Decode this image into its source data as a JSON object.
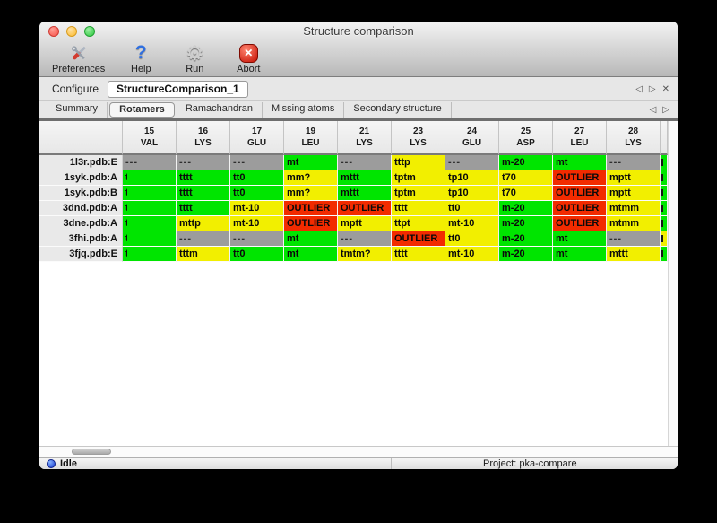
{
  "window": {
    "title": "Structure comparison"
  },
  "toolbar": {
    "items": [
      {
        "label": "Preferences",
        "icon": "preferences-tools-icon"
      },
      {
        "label": "Help",
        "icon": "help-question-icon",
        "glyph": "?"
      },
      {
        "label": "Run",
        "icon": "run-gear-icon",
        "glyph": "⚙"
      },
      {
        "label": "Abort",
        "icon": "abort-stop-icon",
        "glyph": "✕"
      }
    ]
  },
  "configure": {
    "label": "Configure",
    "value": "StructureComparison_1"
  },
  "view_nav": {
    "prev": "◁",
    "next": "▷",
    "close": "✕"
  },
  "tabs": {
    "active": "Rotamers",
    "items": [
      "Summary",
      "Rotamers",
      "Ramachandran",
      "Missing atoms",
      "Secondary structure"
    ],
    "prev": "◁",
    "next": "▷"
  },
  "legend_colors": {
    "good": "#00e500",
    "allowed": "#f2ef00",
    "outlier": "#f22b00",
    "missing": "#9c9c9c"
  },
  "table": {
    "columns": [
      {
        "num": "15",
        "res": "VAL"
      },
      {
        "num": "16",
        "res": "LYS"
      },
      {
        "num": "17",
        "res": "GLU"
      },
      {
        "num": "19",
        "res": "LEU"
      },
      {
        "num": "21",
        "res": "LYS"
      },
      {
        "num": "23",
        "res": "LYS"
      },
      {
        "num": "24",
        "res": "GLU"
      },
      {
        "num": "25",
        "res": "ASP"
      },
      {
        "num": "27",
        "res": "LEU"
      },
      {
        "num": "28",
        "res": "LYS"
      }
    ],
    "rows": [
      {
        "label": "1l3r.pdb:E",
        "partial": "green",
        "cells": [
          {
            "t": "---",
            "c": "gray"
          },
          {
            "t": "---",
            "c": "gray"
          },
          {
            "t": "---",
            "c": "gray"
          },
          {
            "t": "mt",
            "c": "green"
          },
          {
            "t": "---",
            "c": "gray"
          },
          {
            "t": "tttp",
            "c": "yellow"
          },
          {
            "t": "---",
            "c": "gray"
          },
          {
            "t": "m-20",
            "c": "green"
          },
          {
            "t": "mt",
            "c": "green"
          },
          {
            "t": "---",
            "c": "gray"
          }
        ]
      },
      {
        "label": "1syk.pdb:A",
        "partial": "green",
        "cells": [
          {
            "t": "t",
            "c": "green",
            "clip": true
          },
          {
            "t": "tttt",
            "c": "green"
          },
          {
            "t": "tt0",
            "c": "green"
          },
          {
            "t": "mm?",
            "c": "yellow"
          },
          {
            "t": "mttt",
            "c": "green"
          },
          {
            "t": "tptm",
            "c": "yellow"
          },
          {
            "t": "tp10",
            "c": "yellow"
          },
          {
            "t": "t70",
            "c": "yellow"
          },
          {
            "t": "OUTLIER",
            "c": "red"
          },
          {
            "t": "mptt",
            "c": "yellow"
          }
        ]
      },
      {
        "label": "1syk.pdb:B",
        "partial": "green",
        "cells": [
          {
            "t": "t",
            "c": "green",
            "clip": true
          },
          {
            "t": "tttt",
            "c": "green"
          },
          {
            "t": "tt0",
            "c": "green"
          },
          {
            "t": "mm?",
            "c": "yellow"
          },
          {
            "t": "mttt",
            "c": "green"
          },
          {
            "t": "tptm",
            "c": "yellow"
          },
          {
            "t": "tp10",
            "c": "yellow"
          },
          {
            "t": "t70",
            "c": "yellow"
          },
          {
            "t": "OUTLIER",
            "c": "red"
          },
          {
            "t": "mptt",
            "c": "yellow"
          }
        ]
      },
      {
        "label": "3dnd.pdb:A",
        "partial": "green",
        "cells": [
          {
            "t": "t",
            "c": "green",
            "clip": true
          },
          {
            "t": "tttt",
            "c": "green"
          },
          {
            "t": "mt-10",
            "c": "yellow"
          },
          {
            "t": "OUTLIER",
            "c": "red"
          },
          {
            "t": "OUTLIER",
            "c": "red"
          },
          {
            "t": "tttt",
            "c": "yellow"
          },
          {
            "t": "tt0",
            "c": "yellow"
          },
          {
            "t": "m-20",
            "c": "green"
          },
          {
            "t": "OUTLIER",
            "c": "red"
          },
          {
            "t": "mtmm",
            "c": "yellow"
          }
        ]
      },
      {
        "label": "3dne.pdb:A",
        "partial": "green",
        "cells": [
          {
            "t": "t",
            "c": "green",
            "clip": true
          },
          {
            "t": "mttp",
            "c": "yellow"
          },
          {
            "t": "mt-10",
            "c": "yellow"
          },
          {
            "t": "OUTLIER",
            "c": "red"
          },
          {
            "t": "mptt",
            "c": "yellow"
          },
          {
            "t": "ttpt",
            "c": "yellow"
          },
          {
            "t": "mt-10",
            "c": "yellow"
          },
          {
            "t": "m-20",
            "c": "green"
          },
          {
            "t": "OUTLIER",
            "c": "red"
          },
          {
            "t": "mtmm",
            "c": "yellow"
          }
        ]
      },
      {
        "label": "3fhi.pdb:A",
        "partial": "yellow",
        "cells": [
          {
            "t": "t",
            "c": "green",
            "clip": true
          },
          {
            "t": "---",
            "c": "gray"
          },
          {
            "t": "---",
            "c": "gray"
          },
          {
            "t": "mt",
            "c": "green"
          },
          {
            "t": "---",
            "c": "gray"
          },
          {
            "t": "OUTLIER",
            "c": "red"
          },
          {
            "t": "tt0",
            "c": "yellow"
          },
          {
            "t": "m-20",
            "c": "green"
          },
          {
            "t": "mt",
            "c": "green"
          },
          {
            "t": "---",
            "c": "gray"
          }
        ]
      },
      {
        "label": "3fjq.pdb:E",
        "partial": "green",
        "cells": [
          {
            "t": "t",
            "c": "green",
            "clip": true
          },
          {
            "t": "tttm",
            "c": "yellow"
          },
          {
            "t": "tt0",
            "c": "green"
          },
          {
            "t": "mt",
            "c": "green"
          },
          {
            "t": "tmtm?",
            "c": "yellow"
          },
          {
            "t": "tttt",
            "c": "yellow"
          },
          {
            "t": "mt-10",
            "c": "yellow"
          },
          {
            "t": "m-20",
            "c": "green"
          },
          {
            "t": "mt",
            "c": "green"
          },
          {
            "t": "mttt",
            "c": "yellow"
          }
        ]
      }
    ]
  },
  "status": {
    "state": "Idle",
    "project": "Project: pka-compare"
  }
}
